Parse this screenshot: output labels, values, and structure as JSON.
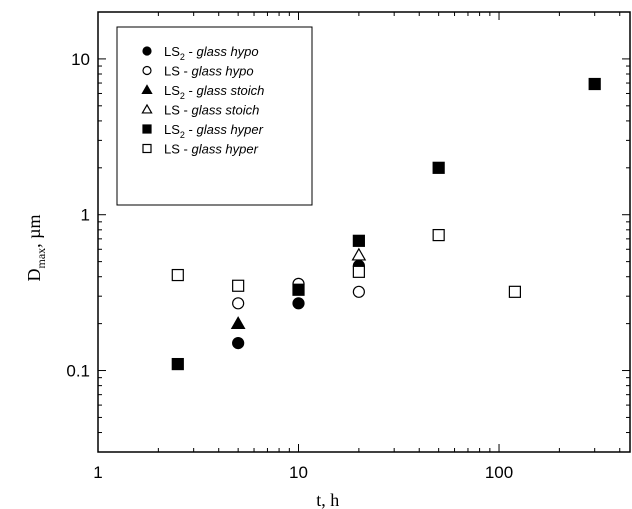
{
  "chart_data": {
    "type": "scatter",
    "x_scale": "log",
    "y_scale": "log",
    "xlim": [
      1,
      450
    ],
    "ylim": [
      0.03,
      20
    ],
    "xlabel": "t, h",
    "ylabel": {
      "main": "D",
      "subscript": "max",
      "unit": ", µm"
    },
    "x_ticks": [
      {
        "value": 1,
        "label": "1"
      },
      {
        "value": 10,
        "label": "10"
      },
      {
        "value": 100,
        "label": "100"
      }
    ],
    "y_ticks": [
      {
        "value": 0.1,
        "label": "0.1"
      },
      {
        "value": 1,
        "label": "1"
      },
      {
        "value": 10,
        "label": "10"
      }
    ],
    "legend_placement": "top-left",
    "series": [
      {
        "name": "LS2 - glass hypo",
        "legend": {
          "prefix": "LS",
          "sub": "2",
          "dash": " - ",
          "italic": "glass hypo"
        },
        "marker": "circle",
        "filled": true,
        "points": [
          [
            5,
            0.15
          ],
          [
            10,
            0.27
          ],
          [
            20,
            0.47
          ]
        ]
      },
      {
        "name": "LS - glass hypo",
        "legend": {
          "prefix": "LS",
          "sub": "",
          "dash": "  - ",
          "italic": "glass hypo"
        },
        "marker": "circle",
        "filled": false,
        "points": [
          [
            5,
            0.27
          ],
          [
            10,
            0.36
          ],
          [
            20,
            0.32
          ]
        ]
      },
      {
        "name": "LS2 - glass stoich",
        "legend": {
          "prefix": "LS",
          "sub": "2",
          "dash": " - ",
          "italic": "glass stoich"
        },
        "marker": "triangle",
        "filled": true,
        "points": [
          [
            5,
            0.2
          ]
        ]
      },
      {
        "name": "LS - glass stoich",
        "legend": {
          "prefix": "LS",
          "sub": "",
          "dash": "  - ",
          "italic": "glass stoich"
        },
        "marker": "triangle",
        "filled": false,
        "points": [
          [
            20,
            0.55
          ]
        ]
      },
      {
        "name": "LS2 - glass hyper",
        "legend": {
          "prefix": "LS",
          "sub": "2",
          "dash": " - ",
          "italic": "glass hyper"
        },
        "marker": "square",
        "filled": true,
        "points": [
          [
            2.5,
            0.11
          ],
          [
            10,
            0.33
          ],
          [
            20,
            0.68
          ],
          [
            50,
            2.0
          ],
          [
            300,
            6.9
          ]
        ]
      },
      {
        "name": "LS - glass hyper",
        "legend": {
          "prefix": "LS",
          "sub": "",
          "dash": "  - ",
          "italic": "glass hyper"
        },
        "marker": "square",
        "filled": false,
        "points": [
          [
            2.5,
            0.41
          ],
          [
            5,
            0.35
          ],
          [
            20,
            0.43
          ],
          [
            50,
            0.74
          ],
          [
            120,
            0.32
          ]
        ]
      }
    ]
  }
}
